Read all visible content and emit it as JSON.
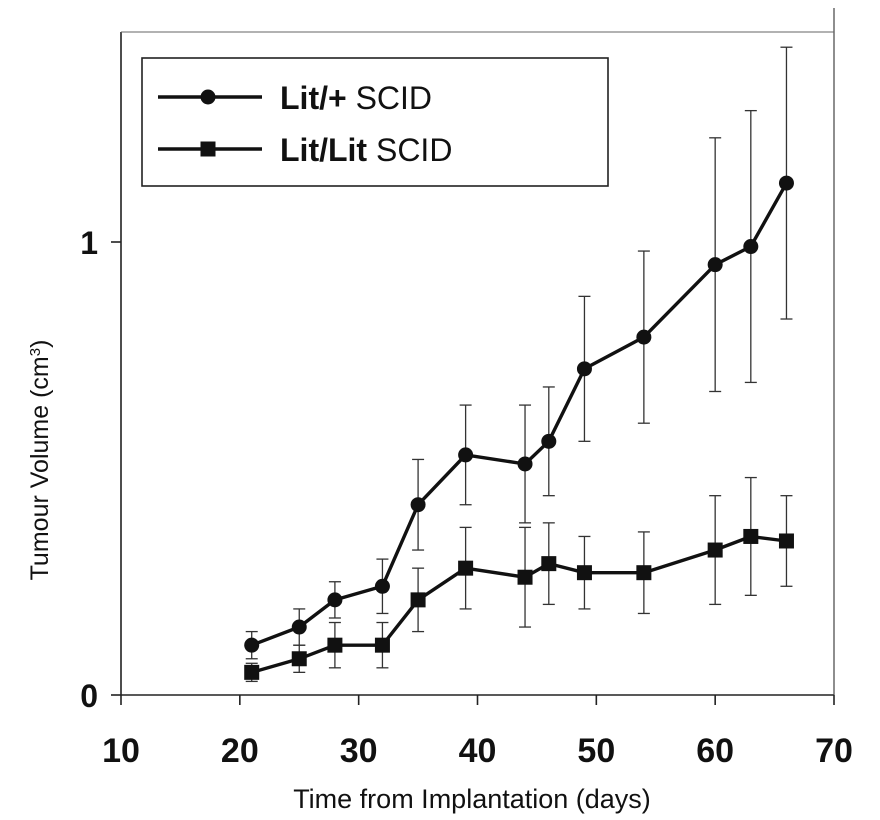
{
  "chart_data": {
    "type": "line",
    "title": "",
    "xlabel": "Time from Implantation (days)",
    "ylabel": "Tumour Volume (cm",
    "ylabel_superscript": "3",
    "ylabel_suffix": ")",
    "xlim": [
      10,
      70
    ],
    "ylim": [
      0,
      1.0
    ],
    "xticks": [
      "10",
      "20",
      "30",
      "40",
      "50",
      "60",
      "70"
    ],
    "yticks": [
      "0",
      "1"
    ],
    "grid": false,
    "legend_position": "top-left",
    "series": [
      {
        "name_bold": "Lit/+",
        "name_rest": " SCID",
        "marker": "circle",
        "color": "#111111",
        "x": [
          21,
          25,
          28,
          32,
          35,
          39,
          44,
          46,
          49,
          54,
          60,
          63,
          66
        ],
        "y": [
          0.11,
          0.15,
          0.21,
          0.24,
          0.42,
          0.53,
          0.51,
          0.56,
          0.72,
          0.79,
          0.95,
          0.99,
          1.13
        ],
        "err": [
          0.03,
          0.04,
          0.04,
          0.06,
          0.1,
          0.11,
          0.13,
          0.12,
          0.16,
          0.19,
          0.28,
          0.3,
          0.3
        ]
      },
      {
        "name_bold": "Lit/Lit",
        "name_rest": " SCID",
        "marker": "square",
        "color": "#111111",
        "x": [
          21,
          25,
          28,
          32,
          35,
          39,
          44,
          46,
          49,
          54,
          60,
          63,
          66
        ],
        "y": [
          0.05,
          0.08,
          0.11,
          0.11,
          0.21,
          0.28,
          0.26,
          0.29,
          0.27,
          0.27,
          0.32,
          0.35,
          0.34
        ],
        "err": [
          0.02,
          0.03,
          0.05,
          0.05,
          0.07,
          0.09,
          0.11,
          0.09,
          0.08,
          0.09,
          0.12,
          0.13,
          0.1
        ]
      }
    ]
  }
}
